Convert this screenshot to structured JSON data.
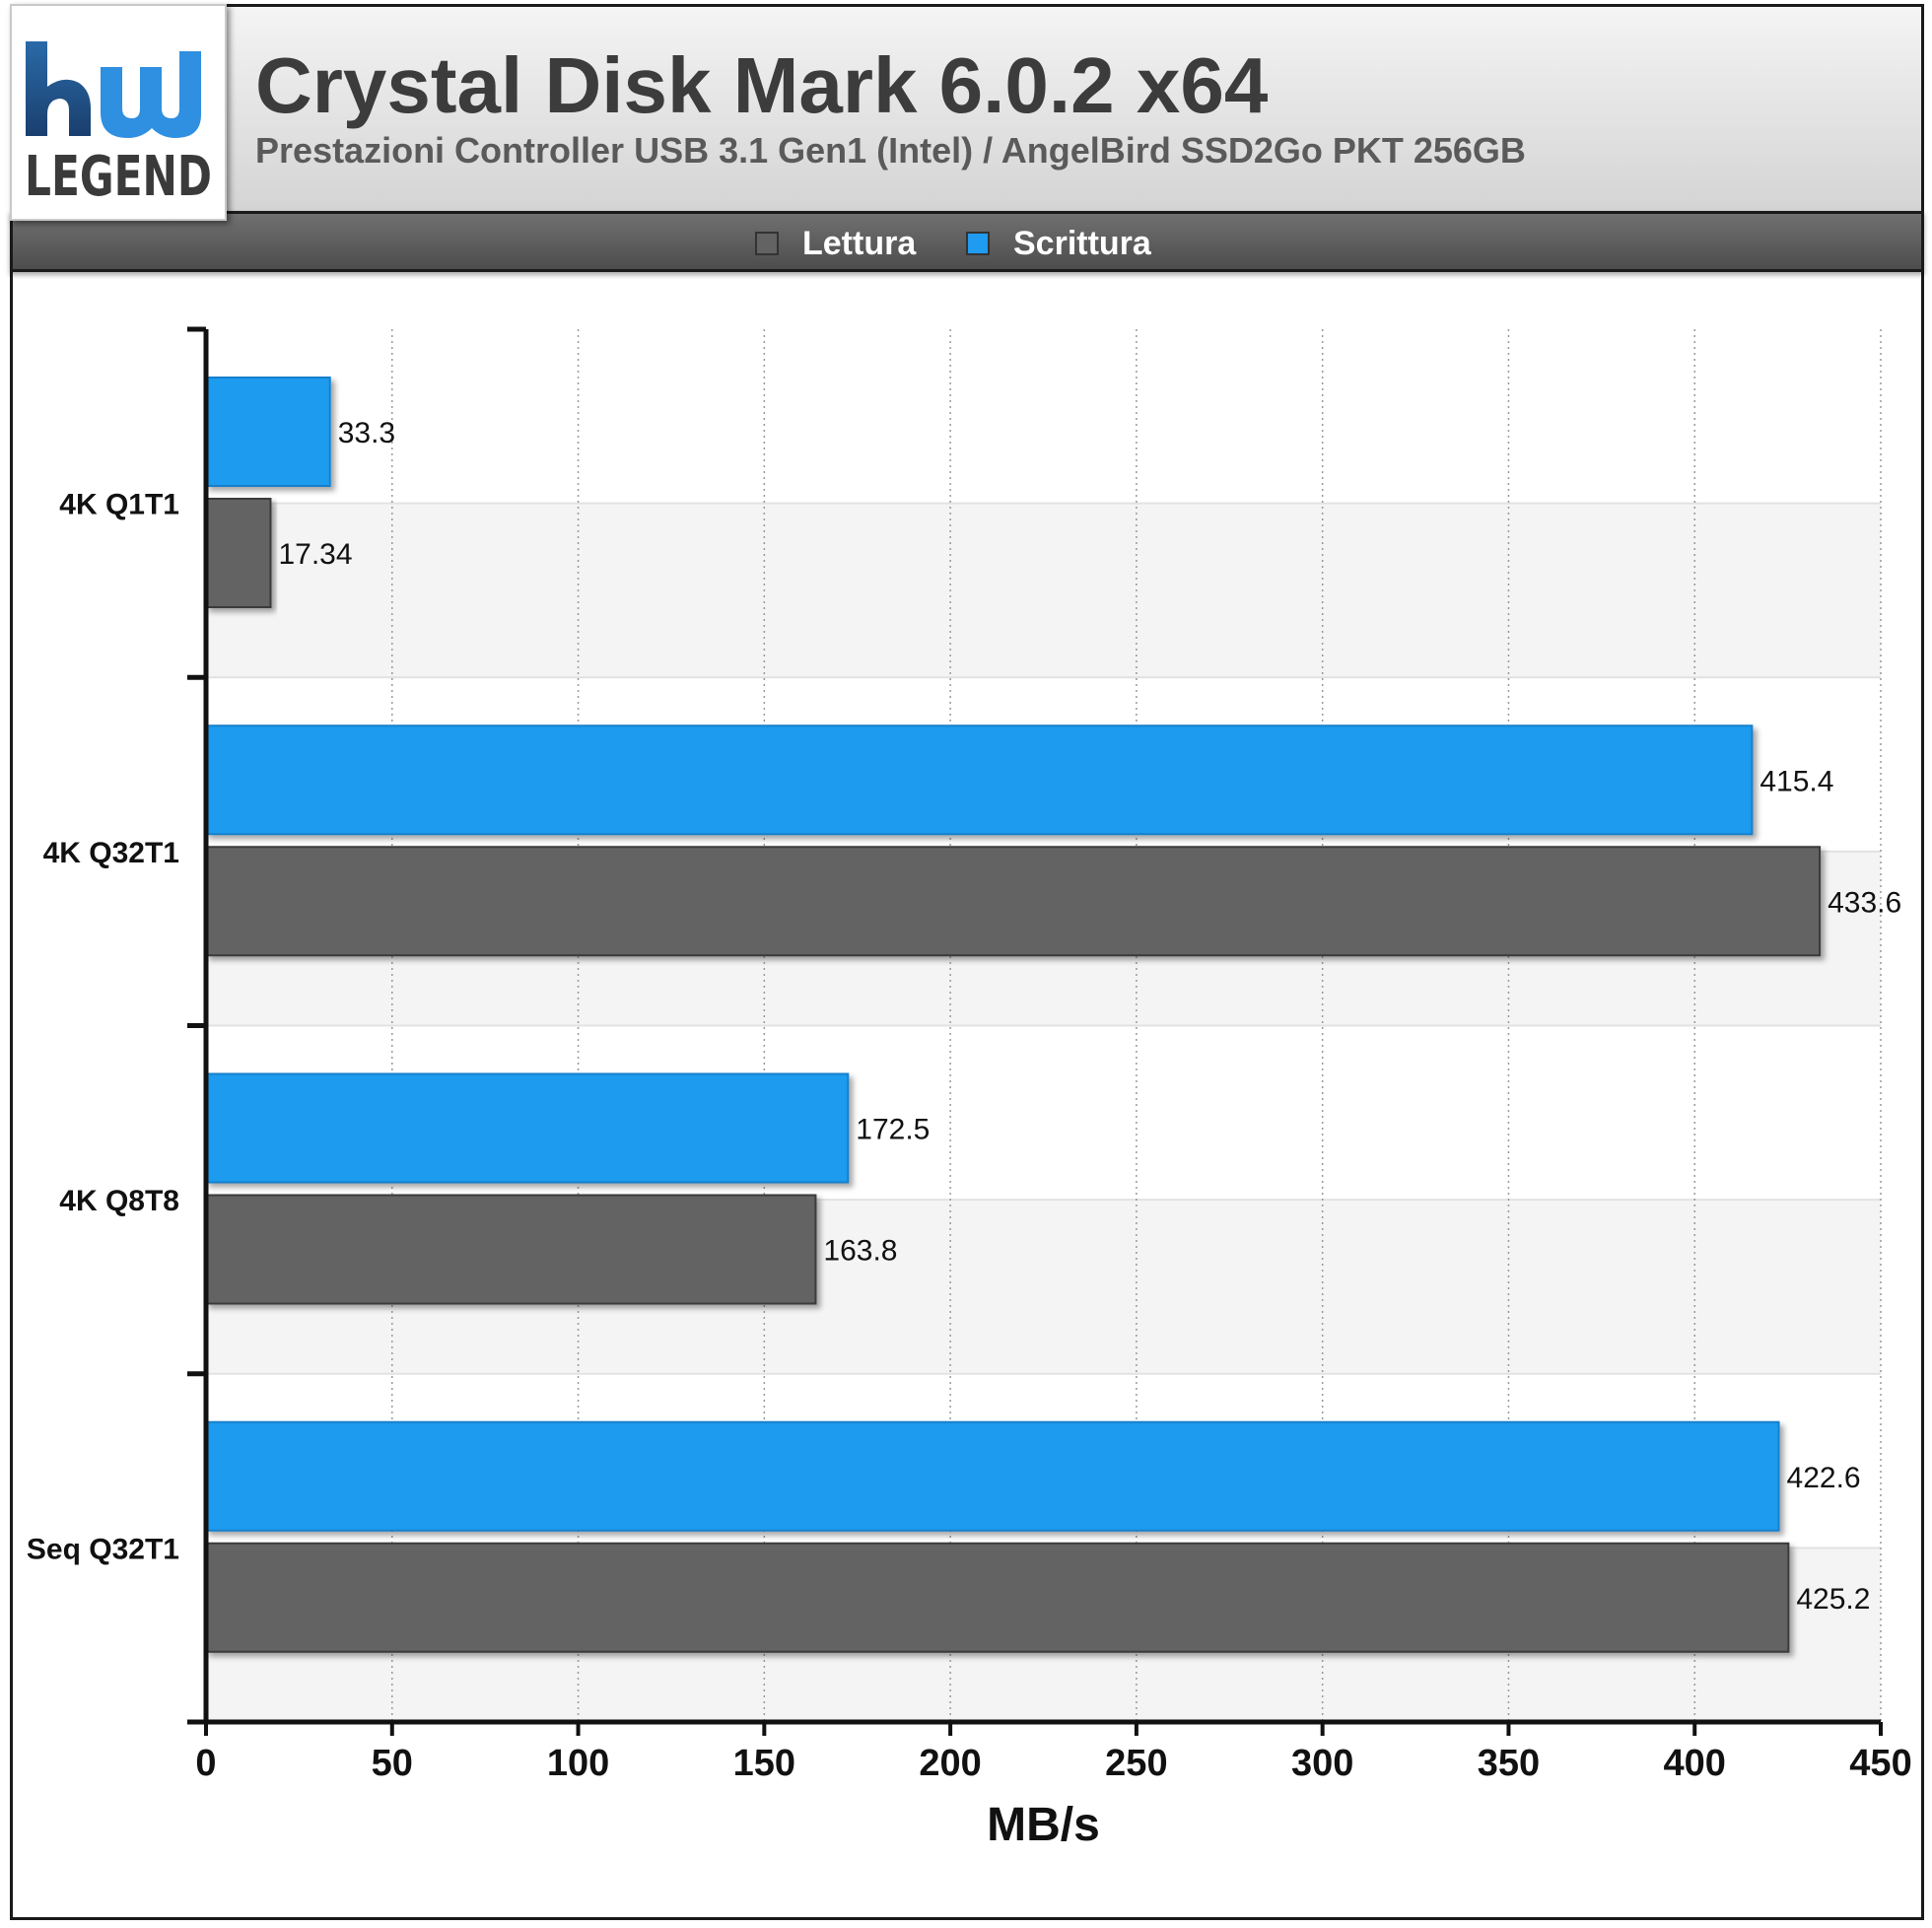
{
  "header": {
    "title": "Crystal Disk Mark 6.0.2 x64",
    "subtitle": "Prestazioni Controller USB 3.1 Gen1 (Intel) / AngelBird SSD2Go PKT 256GB"
  },
  "logo": {
    "text": "LEGEND",
    "icon": "hwlegend-logo"
  },
  "colors": {
    "lettura": "#636363",
    "scrittura": "#1f9bef",
    "band": "#f4f4f4"
  },
  "legend": [
    {
      "label": "Lettura",
      "color": "#636363"
    },
    {
      "label": "Scrittura",
      "color": "#1f9bef"
    }
  ],
  "chart_data": {
    "type": "bar",
    "orientation": "horizontal",
    "categories": [
      "4K Q1T1",
      "4K Q32T1",
      "4K Q8T8",
      "Seq Q32T1"
    ],
    "series": [
      {
        "name": "Scrittura",
        "values": [
          33.3,
          415.4,
          172.5,
          422.6
        ]
      },
      {
        "name": "Lettura",
        "values": [
          17.34,
          433.6,
          163.8,
          425.2
        ]
      }
    ],
    "value_labels": {
      "Scrittura": [
        "33.3",
        "415.4",
        "172.5",
        "422.6"
      ],
      "Lettura": [
        "17.34",
        "433.6",
        "163.8",
        "425.2"
      ]
    },
    "xlabel": "MB/s",
    "xlim": [
      0,
      450
    ],
    "xticks": [
      0,
      50,
      100,
      150,
      200,
      250,
      300,
      350,
      400,
      450
    ],
    "grid": true,
    "legend_position": "top"
  }
}
